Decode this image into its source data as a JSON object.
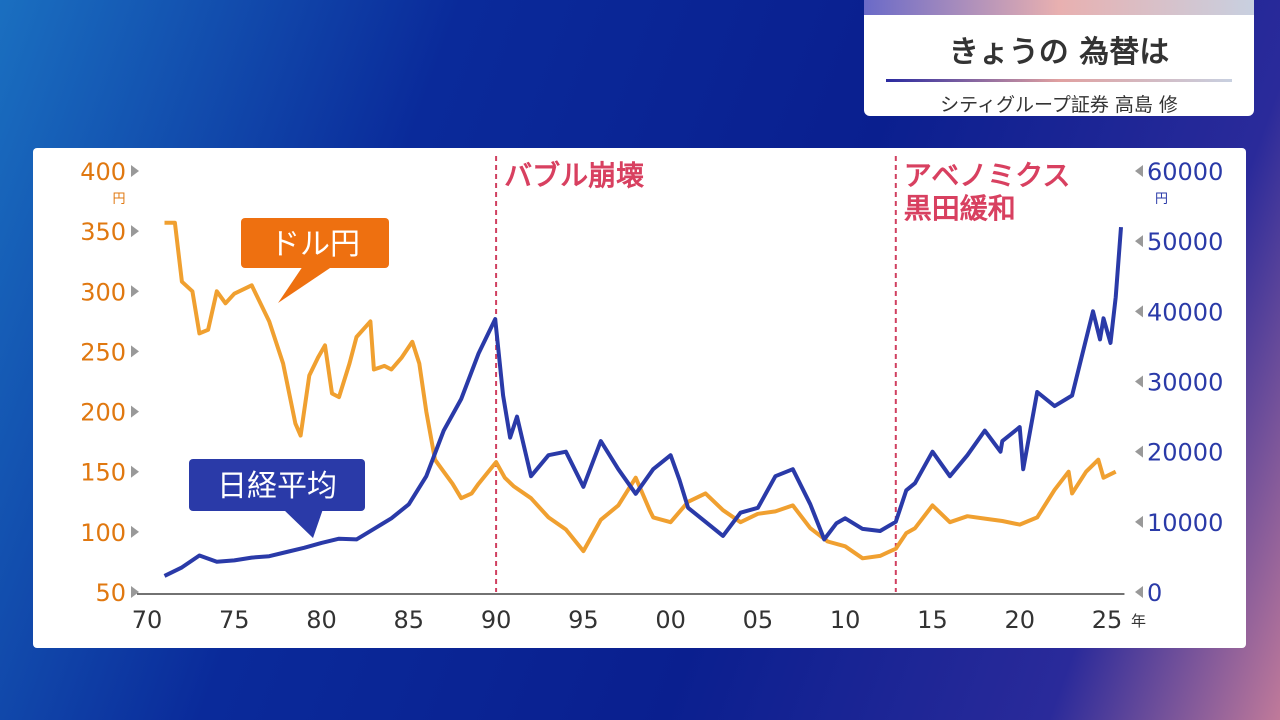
{
  "header": {
    "title": "きょうの 為替は",
    "subtitle": "シティグループ証券 高島 修"
  },
  "chart_data": {
    "type": "line",
    "title": "",
    "xlabel": "年",
    "x_ticks": [
      "70",
      "75",
      "80",
      "85",
      "90",
      "95",
      "00",
      "05",
      "10",
      "15",
      "20",
      "25"
    ],
    "x_range": [
      1970,
      2025
    ],
    "left_axis": {
      "label": "円",
      "ticks": [
        "400",
        "350",
        "300",
        "250",
        "200",
        "150",
        "100",
        "50"
      ],
      "range": [
        50,
        400
      ],
      "color": "#e07810"
    },
    "right_axis": {
      "label": "円",
      "ticks": [
        "60000",
        "50000",
        "40000",
        "30000",
        "20000",
        "10000",
        "0"
      ],
      "range": [
        0,
        60000
      ],
      "color": "#2a3aa8"
    },
    "annotations": [
      {
        "x": 1990,
        "text": "バブル崩壊"
      },
      {
        "x": 2012.9,
        "text": "アベノミクス",
        "text2": "黒田緩和"
      }
    ],
    "series": [
      {
        "name": "ドル円",
        "axis": "left",
        "color": "#f0a030",
        "points": [
          [
            1971,
            357
          ],
          [
            1971.6,
            357
          ],
          [
            1972,
            308
          ],
          [
            1972.6,
            300
          ],
          [
            1973,
            265
          ],
          [
            1973.5,
            268
          ],
          [
            1974,
            300
          ],
          [
            1974.5,
            290
          ],
          [
            1975,
            298
          ],
          [
            1976,
            305
          ],
          [
            1977,
            275
          ],
          [
            1977.8,
            240
          ],
          [
            1978.5,
            190
          ],
          [
            1978.8,
            180
          ],
          [
            1979.3,
            230
          ],
          [
            1979.8,
            245
          ],
          [
            1980.2,
            255
          ],
          [
            1980.6,
            215
          ],
          [
            1981,
            212
          ],
          [
            1981.6,
            240
          ],
          [
            1982,
            262
          ],
          [
            1982.8,
            275
          ],
          [
            1983,
            235
          ],
          [
            1983.6,
            238
          ],
          [
            1984,
            235
          ],
          [
            1984.6,
            245
          ],
          [
            1985.2,
            258
          ],
          [
            1985.6,
            240
          ],
          [
            1986,
            200
          ],
          [
            1986.5,
            160
          ],
          [
            1987,
            150
          ],
          [
            1987.5,
            140
          ],
          [
            1988,
            128
          ],
          [
            1988.6,
            132
          ],
          [
            1989,
            140
          ],
          [
            1990,
            158
          ],
          [
            1990.5,
            145
          ],
          [
            1991,
            138
          ],
          [
            1992,
            128
          ],
          [
            1993,
            112
          ],
          [
            1994,
            102
          ],
          [
            1995,
            84
          ],
          [
            1995.5,
            97
          ],
          [
            1996,
            110
          ],
          [
            1997,
            122
          ],
          [
            1998,
            145
          ],
          [
            1998.8,
            118
          ],
          [
            1999,
            112
          ],
          [
            2000,
            108
          ],
          [
            2001,
            125
          ],
          [
            2002,
            132
          ],
          [
            2003,
            118
          ],
          [
            2004,
            108
          ],
          [
            2005,
            115
          ],
          [
            2006,
            117
          ],
          [
            2007,
            122
          ],
          [
            2008,
            103
          ],
          [
            2009,
            92
          ],
          [
            2010,
            88
          ],
          [
            2011,
            78
          ],
          [
            2012,
            80
          ],
          [
            2012.9,
            86
          ],
          [
            2013.5,
            99
          ],
          [
            2014,
            103
          ],
          [
            2015,
            122
          ],
          [
            2016,
            108
          ],
          [
            2017,
            113
          ],
          [
            2018,
            111
          ],
          [
            2019,
            109
          ],
          [
            2020,
            106
          ],
          [
            2021,
            112
          ],
          [
            2022,
            135
          ],
          [
            2022.8,
            150
          ],
          [
            2023,
            132
          ],
          [
            2023.8,
            150
          ],
          [
            2024.5,
            160
          ],
          [
            2024.8,
            145
          ],
          [
            2025.5,
            150
          ]
        ]
      },
      {
        "name": "日経平均",
        "axis": "right",
        "color": "#2a3aa8",
        "points": [
          [
            1971,
            2300
          ],
          [
            1972,
            3500
          ],
          [
            1973,
            5200
          ],
          [
            1974,
            4300
          ],
          [
            1975,
            4500
          ],
          [
            1976,
            4900
          ],
          [
            1977,
            5100
          ],
          [
            1978,
            5700
          ],
          [
            1979,
            6300
          ],
          [
            1980,
            7000
          ],
          [
            1981,
            7600
          ],
          [
            1982,
            7500
          ],
          [
            1983,
            9000
          ],
          [
            1984,
            10500
          ],
          [
            1985,
            12500
          ],
          [
            1986,
            16500
          ],
          [
            1987,
            23000
          ],
          [
            1988,
            27500
          ],
          [
            1989,
            34000
          ],
          [
            1989.95,
            38900
          ],
          [
            1990.4,
            28000
          ],
          [
            1990.8,
            22000
          ],
          [
            1991.2,
            25000
          ],
          [
            1992,
            16500
          ],
          [
            1993,
            19500
          ],
          [
            1994,
            20000
          ],
          [
            1995,
            15000
          ],
          [
            1996,
            21500
          ],
          [
            1997,
            17500
          ],
          [
            1998,
            14000
          ],
          [
            1999,
            17500
          ],
          [
            2000,
            19500
          ],
          [
            2000.5,
            16000
          ],
          [
            2001,
            12000
          ],
          [
            2002,
            10000
          ],
          [
            2003,
            8000
          ],
          [
            2004,
            11300
          ],
          [
            2005,
            12000
          ],
          [
            2006,
            16500
          ],
          [
            2007,
            17500
          ],
          [
            2008,
            12500
          ],
          [
            2008.8,
            7500
          ],
          [
            2009.5,
            9800
          ],
          [
            2010,
            10500
          ],
          [
            2011,
            9000
          ],
          [
            2012,
            8700
          ],
          [
            2012.9,
            10000
          ],
          [
            2013.5,
            14500
          ],
          [
            2014,
            15500
          ],
          [
            2015,
            20000
          ],
          [
            2016,
            16500
          ],
          [
            2017,
            19500
          ],
          [
            2018,
            23000
          ],
          [
            2018.9,
            20000
          ],
          [
            2019,
            21500
          ],
          [
            2020,
            23500
          ],
          [
            2020.2,
            17500
          ],
          [
            2021,
            28500
          ],
          [
            2022,
            26500
          ],
          [
            2023,
            28000
          ],
          [
            2023.5,
            33000
          ],
          [
            2024.2,
            40000
          ],
          [
            2024.6,
            36000
          ],
          [
            2024.8,
            39000
          ],
          [
            2025.2,
            35500
          ],
          [
            2025.5,
            42000
          ],
          [
            2025.8,
            52000
          ]
        ]
      }
    ],
    "callouts": {
      "usdjpy": "ドル円",
      "nikkei": "日経平均"
    }
  }
}
